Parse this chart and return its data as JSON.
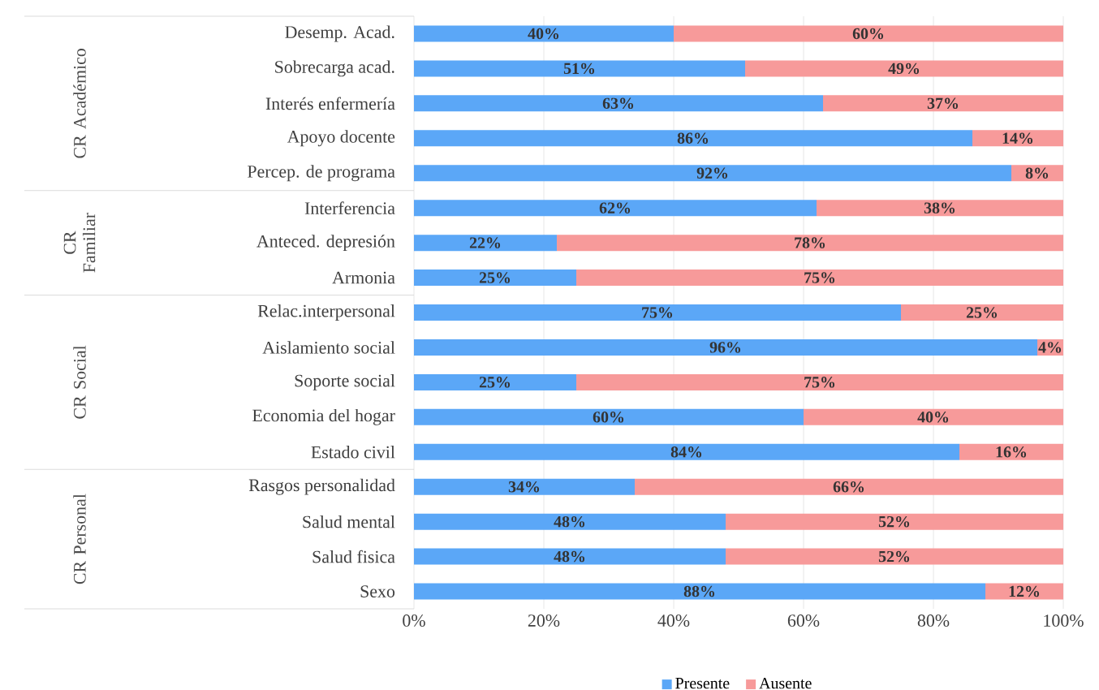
{
  "chart_data": {
    "type": "bar",
    "orientation": "horizontal",
    "stacked": true,
    "categories": [
      "Desemp. Acad.",
      "Sobrecarga acad.",
      "Interés enfermería",
      "Apoyo docente",
      "Percep. de programa",
      "Interferencia",
      "Anteced. depresión",
      "Armonia",
      "Relac.interpersonal",
      "Aislamiento social",
      "Soporte social",
      "Economia del hogar",
      "Estado civil",
      "Rasgos personalidad",
      "Salud mental",
      "Salud fisica",
      "Sexo"
    ],
    "series": [
      {
        "name": "Presente",
        "color": "#5ba7f7",
        "values": [
          40,
          51,
          63,
          86,
          92,
          62,
          22,
          25,
          75,
          96,
          25,
          60,
          84,
          34,
          48,
          48,
          88
        ],
        "value_labels": [
          "40%",
          "51%",
          "63%",
          "86%",
          "92%",
          "62%",
          "22%",
          "25%",
          "75%",
          "96%",
          "25%",
          "60%",
          "84%",
          "34%",
          "48%",
          "48%",
          "88%"
        ]
      },
      {
        "name": "Ausente",
        "color": "#f79a9a",
        "values": [
          60,
          49,
          37,
          14,
          8,
          38,
          78,
          75,
          25,
          4,
          75,
          40,
          16,
          66,
          52,
          52,
          12
        ],
        "value_labels": [
          "60%",
          "49%",
          "37%",
          "14%",
          "8%",
          "38%",
          "78%",
          "75%",
          "25%",
          "4%",
          "75%",
          "40%",
          "16%",
          "66%",
          "52%",
          "52%",
          "12%"
        ]
      }
    ],
    "xlim": [
      0,
      100
    ],
    "xticks": [
      {
        "value": 0,
        "label": "0%"
      },
      {
        "value": 20,
        "label": "20%"
      },
      {
        "value": 40,
        "label": "40%"
      },
      {
        "value": 60,
        "label": "60%"
      },
      {
        "value": 80,
        "label": "80%"
      },
      {
        "value": 100,
        "label": "100%"
      }
    ],
    "grid": "x",
    "legend": "bottom",
    "annotations": [
      "CR Académico",
      "CR Familiar",
      "CR Social",
      "CR Personal"
    ]
  }
}
